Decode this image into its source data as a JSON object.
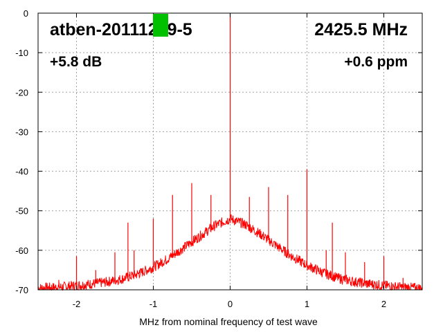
{
  "chart_data": {
    "type": "line",
    "xlabel": "MHz from nominal frequency of test wave",
    "ylabel": "",
    "xlim": [
      -2.5,
      2.5
    ],
    "ylim": [
      -70,
      0
    ],
    "x_ticks": [
      -2,
      -1,
      0,
      1,
      2
    ],
    "y_ticks": [
      0,
      -10,
      -20,
      -30,
      -40,
      -50,
      -60,
      -70
    ],
    "x_tick_labels": [
      "-2",
      "-1",
      "0",
      "1",
      "2"
    ],
    "y_tick_labels": [
      "0",
      "-10",
      "-20",
      "-30",
      "-40",
      "-50",
      "-60",
      "-70"
    ],
    "grid": true,
    "series": [
      {
        "color": "#ff0000",
        "noise_floor": [
          [
            -2.5,
            -69.6
          ],
          [
            -2.2,
            -69.3
          ],
          [
            -2.0,
            -68.9
          ],
          [
            -1.8,
            -68.5
          ],
          [
            -1.6,
            -68.0
          ],
          [
            -1.4,
            -67.2
          ],
          [
            -1.2,
            -66.0
          ],
          [
            -1.0,
            -64.3
          ],
          [
            -0.8,
            -62.0
          ],
          [
            -0.6,
            -59.3
          ],
          [
            -0.4,
            -56.5
          ],
          [
            -0.2,
            -53.8
          ],
          [
            0.0,
            -52.0
          ],
          [
            0.2,
            -53.5
          ],
          [
            0.4,
            -56.0
          ],
          [
            0.6,
            -58.8
          ],
          [
            0.8,
            -61.5
          ],
          [
            1.0,
            -63.8
          ],
          [
            1.2,
            -65.6
          ],
          [
            1.4,
            -67.0
          ],
          [
            1.6,
            -67.9
          ],
          [
            1.8,
            -68.5
          ],
          [
            2.0,
            -68.9
          ],
          [
            2.2,
            -69.3
          ],
          [
            2.5,
            -69.6
          ]
        ],
        "spurs": [
          [
            -2.23,
            -67.5
          ],
          [
            -2.0,
            -61.5
          ],
          [
            -1.75,
            -65.0
          ],
          [
            -1.5,
            -60.5
          ],
          [
            -1.33,
            -53.0
          ],
          [
            -1.25,
            -60.0
          ],
          [
            -1.18,
            -65.0
          ],
          [
            -1.0,
            -52.0
          ],
          [
            -0.75,
            -46.0
          ],
          [
            -0.5,
            -43.0
          ],
          [
            -0.25,
            -46.0
          ],
          [
            0.0,
            0.0
          ],
          [
            0.25,
            -46.5
          ],
          [
            0.5,
            -44.0
          ],
          [
            0.75,
            -46.0
          ],
          [
            1.0,
            -39.5
          ],
          [
            1.1,
            -64.0
          ],
          [
            1.25,
            -60.0
          ],
          [
            1.33,
            -53.0
          ],
          [
            1.5,
            -60.5
          ],
          [
            1.75,
            -63.0
          ],
          [
            2.0,
            -61.5
          ],
          [
            2.25,
            -67.0
          ]
        ]
      }
    ]
  },
  "annotations": {
    "device": "atben-20111219-5",
    "frequency": "2425.5 MHz",
    "level": "+5.8 dB",
    "offset": "+0.6 ppm"
  },
  "colors": {
    "trace": "#ff0000",
    "marker": "#00c000",
    "grid": "#a0a0a0"
  }
}
